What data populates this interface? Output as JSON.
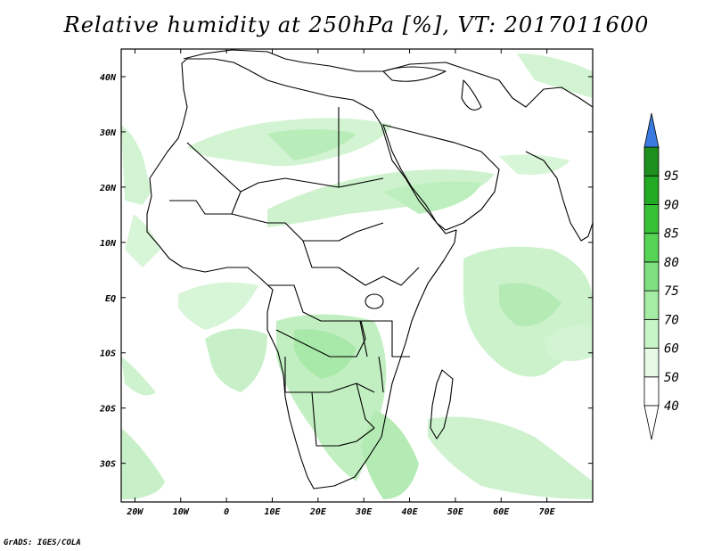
{
  "title": "Relative humidity at 250hPa [%], VT: 2017011600",
  "credit": "GrADS: IGES/COLA",
  "map": {
    "lon_range": [
      -23,
      80
    ],
    "lat_range": [
      -37,
      45
    ],
    "lat_ticks": [
      {
        "value": 40,
        "label": "40N"
      },
      {
        "value": 30,
        "label": "30N"
      },
      {
        "value": 20,
        "label": "20N"
      },
      {
        "value": 10,
        "label": "10N"
      },
      {
        "value": 0,
        "label": "EQ"
      },
      {
        "value": -10,
        "label": "10S"
      },
      {
        "value": -20,
        "label": "20S"
      },
      {
        "value": -30,
        "label": "30S"
      }
    ],
    "lon_ticks": [
      {
        "value": -20,
        "label": "20W"
      },
      {
        "value": -10,
        "label": "10W"
      },
      {
        "value": 0,
        "label": "0"
      },
      {
        "value": 10,
        "label": "10E"
      },
      {
        "value": 20,
        "label": "20E"
      },
      {
        "value": 30,
        "label": "30E"
      },
      {
        "value": 40,
        "label": "40E"
      },
      {
        "value": 50,
        "label": "50E"
      },
      {
        "value": 60,
        "label": "60E"
      },
      {
        "value": 70,
        "label": "70E"
      }
    ]
  },
  "colorbar": {
    "levels": [
      "40",
      "50",
      "60",
      "70",
      "75",
      "80",
      "85",
      "90",
      "95"
    ],
    "bins": [
      {
        "color": "#ffffff"
      },
      {
        "color": "#e6fae6"
      },
      {
        "color": "#c8f5c8"
      },
      {
        "color": "#a5eca5"
      },
      {
        "color": "#7fe07f"
      },
      {
        "color": "#55d455"
      },
      {
        "color": "#36c236"
      },
      {
        "color": "#22aa22"
      },
      {
        "color": "#1c8f1c"
      }
    ],
    "top_arrow_color": "#3a7be0",
    "bottom_arrow_color": "#ffffff"
  }
}
